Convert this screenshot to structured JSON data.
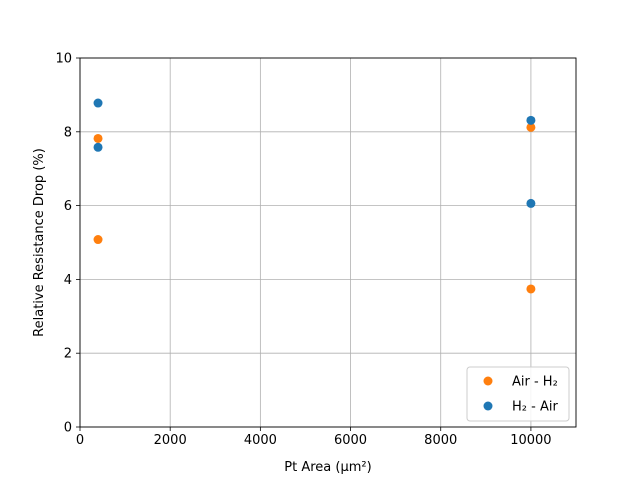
{
  "chart_data": {
    "type": "scatter",
    "title": "",
    "xlabel": "Pt Area (μm²)",
    "ylabel": "Relative Resistance Drop (%)",
    "xlim": [
      0,
      11000
    ],
    "ylim": [
      0,
      10
    ],
    "xticks": [
      0,
      2000,
      4000,
      6000,
      8000,
      10000
    ],
    "yticks": [
      0,
      2,
      4,
      6,
      8,
      10
    ],
    "grid": true,
    "legend_position": "lower-right",
    "series": [
      {
        "name": "Air - H₂",
        "color": "#ff7f0e",
        "points": [
          {
            "x": 400,
            "y": 7.82
          },
          {
            "x": 400,
            "y": 5.08
          },
          {
            "x": 10000,
            "y": 8.12
          },
          {
            "x": 10000,
            "y": 3.74
          }
        ]
      },
      {
        "name": "H₂ - Air",
        "color": "#1f77b4",
        "points": [
          {
            "x": 400,
            "y": 8.78
          },
          {
            "x": 400,
            "y": 7.58
          },
          {
            "x": 10000,
            "y": 8.31
          },
          {
            "x": 10000,
            "y": 6.06
          }
        ]
      }
    ]
  }
}
